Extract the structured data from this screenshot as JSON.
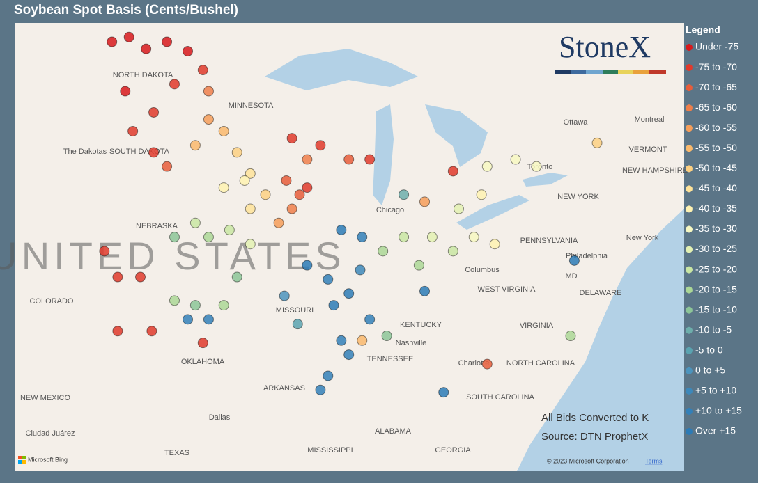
{
  "header": {
    "title": "Soybean Spot Basis (Cents/Bushel)"
  },
  "logo": "StoneX",
  "legend": {
    "title": "Legend",
    "items": [
      {
        "label": "Under -75",
        "color": "#d7191c"
      },
      {
        "label": "-75 to -70",
        "color": "#df3a2c"
      },
      {
        "label": "-70 to -65",
        "color": "#e65d3b"
      },
      {
        "label": "-65 to -60",
        "color": "#ee7f4b"
      },
      {
        "label": "-60 to -55",
        "color": "#f49e5b"
      },
      {
        "label": "-55 to -50",
        "color": "#f9b96d"
      },
      {
        "label": "-50 to -45",
        "color": "#fcd082"
      },
      {
        "label": "-45 to -40",
        "color": "#fee39a"
      },
      {
        "label": "-40 to -35",
        "color": "#fef2b2"
      },
      {
        "label": "-35 to -30",
        "color": "#f7f8c2"
      },
      {
        "label": "-30 to -25",
        "color": "#e3f1b3"
      },
      {
        "label": "-25 to -20",
        "color": "#c9e6a3"
      },
      {
        "label": "-20 to -15",
        "color": "#abd796"
      },
      {
        "label": "-15 to -10",
        "color": "#8cc598"
      },
      {
        "label": "-10 to -5",
        "color": "#6daeab"
      },
      {
        "label": "-5 to 0",
        "color": "#5aa3b0"
      },
      {
        "label": "0 to +5",
        "color": "#4c94bd"
      },
      {
        "label": "+5 to +10",
        "color": "#3d88ba"
      },
      {
        "label": "+10 to +15",
        "color": "#3380b8"
      },
      {
        "label": "Over +15",
        "color": "#2c7bb6"
      }
    ]
  },
  "notes": [
    "All Bids Converted to K",
    "Source: DTN ProphetX"
  ],
  "attribution": {
    "copyright": "© 2023 Microsoft Corporation",
    "terms": "Terms",
    "provider": "Microsoft Bing"
  },
  "map_labels": [
    "UNITED STATES",
    "NORTH DAKOTA",
    "SOUTH DAKOTA",
    "The Dakotas",
    "MINNESOTA",
    "NEBRASKA",
    "COLORADO",
    "MISSOURI",
    "KENTUCKY",
    "TENNESSEE",
    "OKLAHOMA",
    "ARKANSAS",
    "NEW MEXICO",
    "TEXAS",
    "MISSISSIPPI",
    "ALABAMA",
    "GEORGIA",
    "SOUTH CAROLINA",
    "NORTH CAROLINA",
    "VIRGINIA",
    "WEST VIRGINIA",
    "PENNSYLVANIA",
    "NEW YORK",
    "VERMONT",
    "NEW HAMPSHIRE",
    "DELAWARE",
    "MD",
    "Chicago",
    "Columbus",
    "Nashville",
    "Dallas",
    "Charlotte",
    "Philadelphia",
    "New York",
    "Toronto",
    "Montreal",
    "Ottawa",
    "Ciudad Juárez"
  ],
  "points": [
    {
      "lon": -102.1,
      "lat": 49.0,
      "class": 0
    },
    {
      "lon": -101.2,
      "lat": 49.2,
      "class": 0
    },
    {
      "lon": -100.3,
      "lat": 48.7,
      "class": 0
    },
    {
      "lon": -99.2,
      "lat": 49.0,
      "class": 0
    },
    {
      "lon": -98.1,
      "lat": 48.6,
      "class": 0
    },
    {
      "lon": -97.3,
      "lat": 47.8,
      "class": 1
    },
    {
      "lon": -98.8,
      "lat": 47.2,
      "class": 1
    },
    {
      "lon": -97.0,
      "lat": 46.9,
      "class": 3
    },
    {
      "lon": -101.4,
      "lat": 46.9,
      "class": 0
    },
    {
      "lon": -99.9,
      "lat": 46.0,
      "class": 1
    },
    {
      "lon": -97.0,
      "lat": 45.7,
      "class": 4
    },
    {
      "lon": -96.2,
      "lat": 45.2,
      "class": 5
    },
    {
      "lon": -97.7,
      "lat": 44.6,
      "class": 5
    },
    {
      "lon": -95.5,
      "lat": 44.3,
      "class": 6
    },
    {
      "lon": -94.8,
      "lat": 43.4,
      "class": 7
    },
    {
      "lon": -101.0,
      "lat": 45.2,
      "class": 1
    },
    {
      "lon": -99.9,
      "lat": 44.3,
      "class": 1
    },
    {
      "lon": -99.2,
      "lat": 43.7,
      "class": 2
    },
    {
      "lon": -92.6,
      "lat": 44.9,
      "class": 1
    },
    {
      "lon": -91.1,
      "lat": 44.6,
      "class": 1
    },
    {
      "lon": -89.6,
      "lat": 44.0,
      "class": 2
    },
    {
      "lon": -88.5,
      "lat": 44.0,
      "class": 1
    },
    {
      "lon": -92.9,
      "lat": 43.1,
      "class": 2
    },
    {
      "lon": -92.2,
      "lat": 42.5,
      "class": 2
    },
    {
      "lon": -92.6,
      "lat": 41.9,
      "class": 3
    },
    {
      "lon": -91.8,
      "lat": 42.8,
      "class": 1
    },
    {
      "lon": -96.2,
      "lat": 42.8,
      "class": 8
    },
    {
      "lon": -95.1,
      "lat": 43.1,
      "class": 8
    },
    {
      "lon": -94.0,
      "lat": 42.5,
      "class": 6
    },
    {
      "lon": -97.7,
      "lat": 41.3,
      "class": 11
    },
    {
      "lon": -97.0,
      "lat": 40.7,
      "class": 12
    },
    {
      "lon": -95.9,
      "lat": 41.0,
      "class": 11
    },
    {
      "lon": -94.8,
      "lat": 40.4,
      "class": 10
    },
    {
      "lon": -102.5,
      "lat": 40.1,
      "class": 1
    },
    {
      "lon": -101.8,
      "lat": 39.0,
      "class": 1
    },
    {
      "lon": -100.6,
      "lat": 39.0,
      "class": 1
    },
    {
      "lon": -98.8,
      "lat": 38.0,
      "class": 12
    },
    {
      "lon": -97.7,
      "lat": 37.8,
      "class": 13
    },
    {
      "lon": -96.2,
      "lat": 37.8,
      "class": 12
    },
    {
      "lon": -98.1,
      "lat": 37.2,
      "class": 18
    },
    {
      "lon": -97.0,
      "lat": 37.2,
      "class": 18
    },
    {
      "lon": -91.8,
      "lat": 39.5,
      "class": 19
    },
    {
      "lon": -90.7,
      "lat": 38.9,
      "class": 18
    },
    {
      "lon": -89.6,
      "lat": 38.3,
      "class": 19
    },
    {
      "lon": -88.9,
      "lat": 40.7,
      "class": 18
    },
    {
      "lon": -90.0,
      "lat": 41.0,
      "class": 19
    },
    {
      "lon": -90.4,
      "lat": 37.8,
      "class": 19
    },
    {
      "lon": -88.5,
      "lat": 37.2,
      "class": 18
    },
    {
      "lon": -87.8,
      "lat": 40.1,
      "class": 12
    },
    {
      "lon": -86.7,
      "lat": 40.7,
      "class": 11
    },
    {
      "lon": -85.9,
      "lat": 39.5,
      "class": 12
    },
    {
      "lon": -85.2,
      "lat": 40.7,
      "class": 10
    },
    {
      "lon": -84.1,
      "lat": 40.1,
      "class": 11
    },
    {
      "lon": -83.0,
      "lat": 40.7,
      "class": 9
    },
    {
      "lon": -81.9,
      "lat": 40.4,
      "class": 8
    },
    {
      "lon": -82.3,
      "lat": 43.7,
      "class": 9
    },
    {
      "lon": -80.8,
      "lat": 44.0,
      "class": 9
    },
    {
      "lon": -79.7,
      "lat": 43.7,
      "class": 9
    },
    {
      "lon": -82.6,
      "lat": 42.5,
      "class": 8
    },
    {
      "lon": -83.8,
      "lat": 41.9,
      "class": 10
    },
    {
      "lon": -84.1,
      "lat": 43.5,
      "class": 1
    },
    {
      "lon": -90.0,
      "lat": 36.3,
      "class": 18
    },
    {
      "lon": -89.6,
      "lat": 35.7,
      "class": 18
    },
    {
      "lon": -91.1,
      "lat": 34.2,
      "class": 18
    },
    {
      "lon": -90.7,
      "lat": 34.8,
      "class": 18
    },
    {
      "lon": -88.9,
      "lat": 36.3,
      "class": 5
    },
    {
      "lon": -82.3,
      "lat": 35.3,
      "class": 2
    },
    {
      "lon": -84.6,
      "lat": 34.1,
      "class": 19
    },
    {
      "lon": -77.7,
      "lat": 39.7,
      "class": 19
    },
    {
      "lon": -77.9,
      "lat": 36.5,
      "class": 12
    },
    {
      "lon": -76.5,
      "lat": 44.7,
      "class": 6
    },
    {
      "lon": -100.0,
      "lat": 36.7,
      "class": 1
    },
    {
      "lon": -97.3,
      "lat": 36.2,
      "class": 1
    },
    {
      "lon": -101.8,
      "lat": 36.7,
      "class": 1
    },
    {
      "lon": -87.6,
      "lat": 36.5,
      "class": 13
    },
    {
      "lon": -85.6,
      "lat": 38.4,
      "class": 19
    },
    {
      "lon": -91.8,
      "lat": 44.0,
      "class": 3
    },
    {
      "lon": -94.8,
      "lat": 41.9,
      "class": 7
    },
    {
      "lon": -93.3,
      "lat": 41.3,
      "class": 4
    },
    {
      "lon": -86.7,
      "lat": 42.5,
      "class": 14
    },
    {
      "lon": -85.6,
      "lat": 42.2,
      "class": 4
    },
    {
      "lon": -98.8,
      "lat": 40.7,
      "class": 13
    },
    {
      "lon": -95.5,
      "lat": 39.0,
      "class": 13
    },
    {
      "lon": -93.0,
      "lat": 38.2,
      "class": 16
    },
    {
      "lon": -89.0,
      "lat": 39.3,
      "class": 17
    },
    {
      "lon": -92.3,
      "lat": 37.0,
      "class": 15
    }
  ]
}
